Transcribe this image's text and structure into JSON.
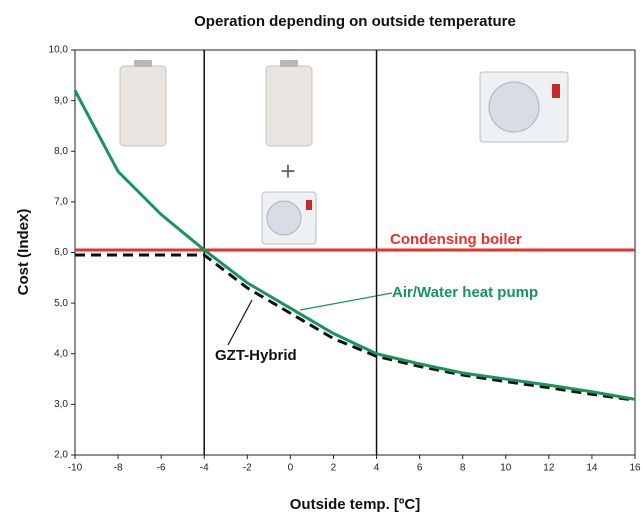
{
  "chart_data": {
    "type": "line",
    "title": "Operation depending on outside temperature",
    "x_label": "Outside temp. [ºC]",
    "y_label": "Cost (Index)",
    "x": [
      -10,
      -8,
      -6,
      -4,
      -2,
      0,
      2,
      4,
      6,
      8,
      10,
      12,
      14,
      16
    ],
    "series": [
      {
        "name": "Condensing boiler",
        "color": "#e8312a",
        "line_style": "solid",
        "values": [
          6.05,
          6.05,
          6.05,
          6.05,
          6.05,
          6.05,
          6.05,
          6.05,
          6.05,
          6.05,
          6.05,
          6.05,
          6.05,
          6.05
        ]
      },
      {
        "name": "Air/Water heat pump",
        "color": "#17955a",
        "line_style": "solid",
        "values": [
          9.2,
          7.6,
          6.75,
          6.05,
          5.4,
          4.9,
          4.4,
          4.0,
          3.8,
          3.62,
          3.5,
          3.38,
          3.25,
          3.1
        ]
      },
      {
        "name": "GZT-Hybrid",
        "color": "#111111",
        "line_style": "dashed",
        "values": [
          5.95,
          5.95,
          5.95,
          5.95,
          5.3,
          4.8,
          4.3,
          3.95,
          3.75,
          3.58,
          3.45,
          3.33,
          3.2,
          3.08
        ]
      }
    ],
    "annotations": [
      "+"
    ],
    "dividers": [
      -4,
      4
    ],
    "xlim": [
      -10,
      16
    ],
    "xticks": [
      -10,
      -8,
      -6,
      -4,
      -2,
      0,
      2,
      4,
      6,
      8,
      10,
      12,
      14,
      16
    ],
    "ylim": [
      2,
      10
    ],
    "yticks": [
      {
        "value": 2,
        "label": "2,0"
      },
      {
        "value": 3,
        "label": "3,0"
      },
      {
        "value": 4,
        "label": "4,0"
      },
      {
        "value": 5,
        "label": "5,0"
      },
      {
        "value": 6,
        "label": "6,0"
      },
      {
        "value": 7,
        "label": "7,0"
      },
      {
        "value": 8,
        "label": "8,0"
      },
      {
        "value": 9,
        "label": "9,0"
      },
      {
        "value": 10,
        "label": "10,0"
      }
    ],
    "grid": false
  }
}
